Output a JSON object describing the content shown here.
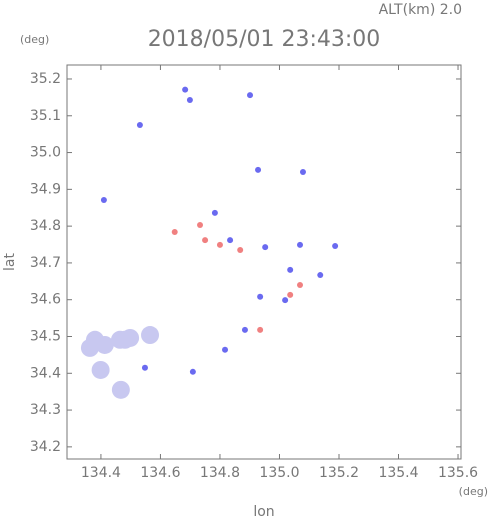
{
  "chart_data": {
    "type": "scatter",
    "title": "2018/05/01 23:43:00",
    "altitude_label": "ALT(km) 2.0",
    "y_unit": "(deg)",
    "x_unit": "(deg)",
    "xlabel": "lon",
    "ylabel": "lat",
    "xlim": [
      134.286,
      135.61
    ],
    "ylim": [
      34.167,
      35.238
    ],
    "xticks": [
      134.4,
      134.6,
      134.8,
      {
        "value": 135,
        "label": "135.0"
      },
      135.2,
      135.4,
      135.6
    ],
    "yticks": [
      34.2,
      34.3,
      34.4,
      34.5,
      34.6,
      34.7,
      34.8,
      34.9,
      {
        "value": 35,
        "label": "35.0"
      },
      35.1,
      35.2
    ],
    "series": [
      {
        "color": "#c8c8f0",
        "x": [
          134.38,
          134.413,
          134.464,
          134.481,
          134.498,
          134.565,
          134.363,
          134.399,
          134.467
        ],
        "y": [
          34.491,
          34.477,
          34.491,
          34.491,
          34.496,
          34.504,
          34.469,
          34.409,
          34.355
        ]
      },
      {
        "color": "#6a6af0",
        "x": [
          134.683,
          134.699,
          134.531,
          134.901,
          134.928,
          135.079,
          134.41,
          134.783,
          134.834,
          134.952,
          135.069,
          135.187,
          135.036,
          135.137,
          134.935,
          135.019,
          134.884,
          134.817,
          134.548,
          134.709
        ],
        "y": [
          35.171,
          35.143,
          35.075,
          35.156,
          34.953,
          34.947,
          34.871,
          34.836,
          34.762,
          34.743,
          34.749,
          34.746,
          34.681,
          34.667,
          34.608,
          34.599,
          34.518,
          34.464,
          34.415,
          34.404
        ]
      },
      {
        "color": "#f08080",
        "x": [
          134.648,
          134.75,
          134.868,
          135.036,
          134.935,
          134.8,
          135.069,
          134.733
        ],
        "y": [
          34.784,
          34.762,
          34.735,
          34.613,
          34.518,
          34.749,
          34.64,
          34.803
        ]
      }
    ]
  }
}
